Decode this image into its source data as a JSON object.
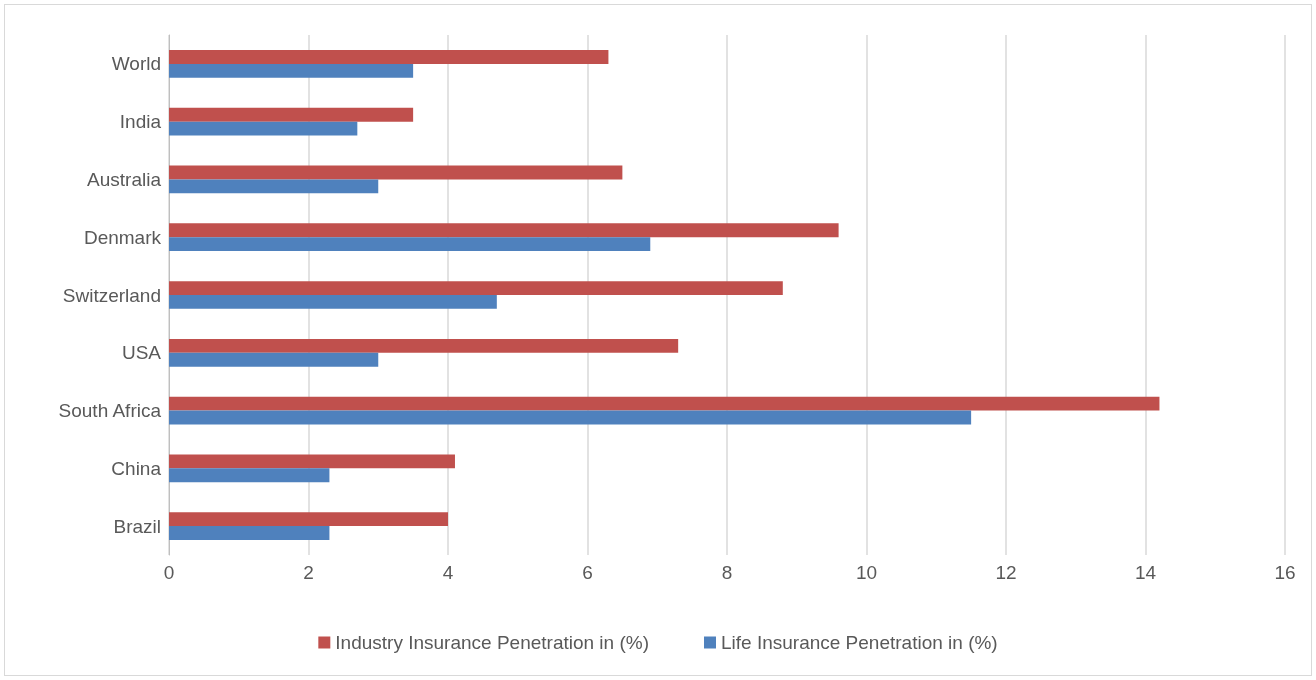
{
  "chart_data": {
    "type": "bar",
    "orientation": "horizontal",
    "categories": [
      "World",
      "India",
      "Australia",
      "Denmark",
      "Switzerland",
      "USA",
      "South Africa",
      "China",
      "Brazil"
    ],
    "series": [
      {
        "name": "Industry Insurance Penetration in (%)",
        "color": "#c0504d",
        "values": [
          6.3,
          3.5,
          6.5,
          9.6,
          8.8,
          7.3,
          14.2,
          4.1,
          4.0
        ]
      },
      {
        "name": "Life Insurance Penetration in (%)",
        "color": "#4f81bd",
        "values": [
          3.5,
          2.7,
          3.0,
          6.9,
          4.7,
          3.0,
          11.5,
          2.3,
          2.3
        ]
      }
    ],
    "xlim": [
      0,
      16
    ],
    "xticks": [
      0,
      2,
      4,
      6,
      8,
      10,
      12,
      14,
      16
    ],
    "grid": "x",
    "legend": "bottom"
  }
}
